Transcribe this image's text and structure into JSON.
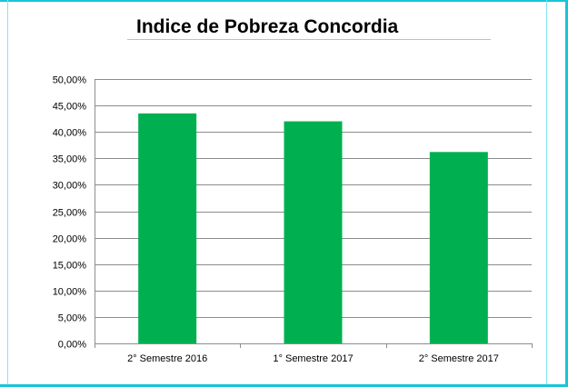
{
  "chart_data": {
    "type": "bar",
    "title": "Indice de Pobreza Concordia",
    "categories": [
      "2° Semestre 2016",
      "1° Semestre 2017",
      "2° Semestre 2017"
    ],
    "values": [
      43.5,
      42.0,
      36.2
    ],
    "y_ticks": [
      "0,00%",
      "5,00%",
      "10,00%",
      "15,00%",
      "20,00%",
      "25,00%",
      "30,00%",
      "35,00%",
      "40,00%",
      "45,00%",
      "50,00%"
    ],
    "ylim": [
      0,
      50
    ],
    "y_unit": "%",
    "grid": true,
    "legend": "none",
    "bar_color": "#00b050",
    "grid_color": "#8c8c8c"
  }
}
